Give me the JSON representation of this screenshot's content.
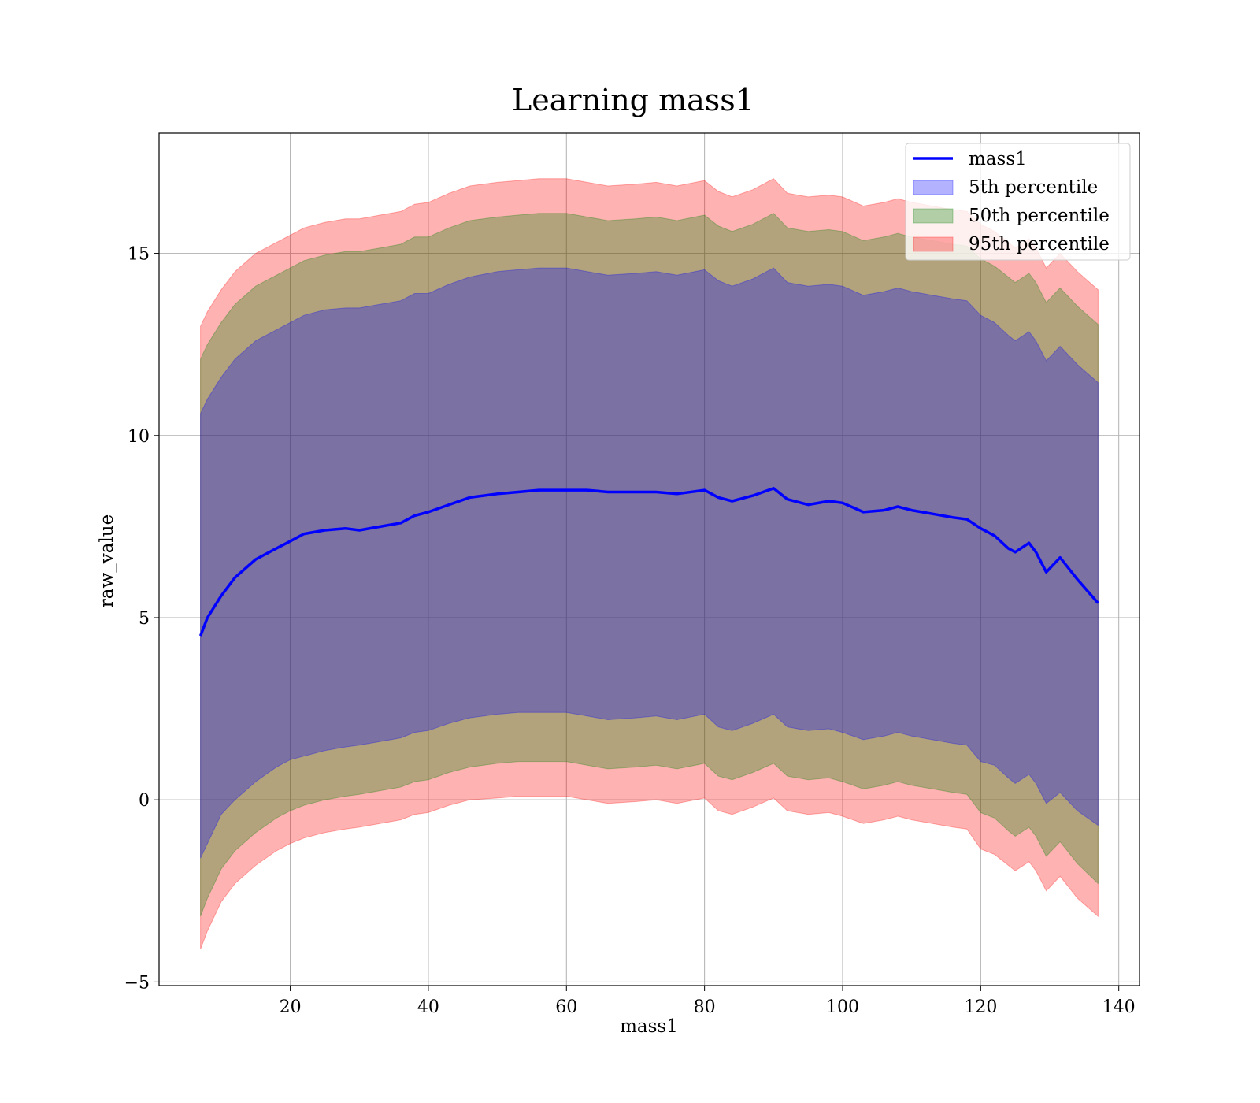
{
  "chart_data": {
    "type": "area",
    "title": "Learning mass1",
    "xlabel": "mass1",
    "ylabel": "raw_value",
    "xlim": [
      1,
      143
    ],
    "ylim": [
      -5.1,
      18.3
    ],
    "xticks": [
      20,
      40,
      60,
      80,
      100,
      120,
      140
    ],
    "yticks": [
      -5,
      0,
      5,
      10,
      15
    ],
    "grid": true,
    "legend_position": "top-right",
    "x": [
      7,
      8,
      10,
      12,
      15,
      18,
      20,
      22,
      25,
      28,
      30,
      33,
      36,
      38,
      40,
      43,
      46,
      50,
      53,
      56,
      60,
      63,
      66,
      70,
      73,
      76,
      80,
      82,
      84,
      87,
      90,
      92,
      95,
      98,
      100,
      103,
      106,
      108,
      110,
      113,
      116,
      118,
      120,
      122,
      124,
      125,
      127,
      128,
      129.5,
      131.5,
      134,
      137
    ],
    "series": [
      {
        "name": "mass1",
        "kind": "line",
        "color": "#0000ff",
        "values": [
          4.5,
          5.0,
          5.6,
          6.1,
          6.6,
          6.9,
          7.1,
          7.3,
          7.4,
          7.45,
          7.4,
          7.5,
          7.6,
          7.8,
          7.9,
          8.1,
          8.3,
          8.4,
          8.45,
          8.5,
          8.5,
          8.5,
          8.45,
          8.45,
          8.45,
          8.4,
          8.5,
          8.3,
          8.2,
          8.35,
          8.55,
          8.25,
          8.1,
          8.2,
          8.15,
          7.9,
          7.95,
          8.05,
          7.95,
          7.85,
          7.75,
          7.7,
          7.45,
          7.25,
          6.9,
          6.8,
          7.05,
          6.8,
          6.25,
          6.65,
          6.05,
          5.4
        ]
      },
      {
        "name": "5th percentile",
        "kind": "band",
        "color": "#0000ff",
        "lower": [
          -1.6,
          -1.2,
          -0.4,
          0.0,
          0.5,
          0.9,
          1.1,
          1.2,
          1.35,
          1.45,
          1.5,
          1.6,
          1.7,
          1.85,
          1.9,
          2.1,
          2.25,
          2.35,
          2.4,
          2.4,
          2.4,
          2.3,
          2.2,
          2.25,
          2.3,
          2.2,
          2.35,
          2.0,
          1.9,
          2.1,
          2.35,
          2.0,
          1.9,
          1.95,
          1.85,
          1.65,
          1.75,
          1.85,
          1.75,
          1.65,
          1.55,
          1.5,
          1.05,
          0.95,
          0.6,
          0.45,
          0.7,
          0.45,
          -0.1,
          0.2,
          -0.3,
          -0.7
        ],
        "upper": [
          10.6,
          11.0,
          11.6,
          12.1,
          12.6,
          12.9,
          13.1,
          13.3,
          13.45,
          13.5,
          13.5,
          13.6,
          13.7,
          13.9,
          13.9,
          14.15,
          14.35,
          14.5,
          14.55,
          14.6,
          14.6,
          14.5,
          14.4,
          14.45,
          14.5,
          14.4,
          14.55,
          14.25,
          14.1,
          14.3,
          14.6,
          14.2,
          14.1,
          14.15,
          14.1,
          13.85,
          13.95,
          14.05,
          13.95,
          13.85,
          13.75,
          13.7,
          13.3,
          13.1,
          12.75,
          12.6,
          12.85,
          12.6,
          12.05,
          12.45,
          11.95,
          11.45
        ]
      },
      {
        "name": "50th percentile",
        "kind": "band",
        "color": "#008000",
        "lower": [
          -3.2,
          -2.7,
          -1.9,
          -1.4,
          -0.9,
          -0.5,
          -0.3,
          -0.15,
          0.0,
          0.1,
          0.15,
          0.25,
          0.35,
          0.5,
          0.55,
          0.75,
          0.9,
          1.0,
          1.05,
          1.05,
          1.05,
          0.95,
          0.85,
          0.9,
          0.95,
          0.85,
          1.0,
          0.65,
          0.55,
          0.75,
          1.0,
          0.65,
          0.55,
          0.6,
          0.5,
          0.3,
          0.4,
          0.5,
          0.4,
          0.3,
          0.2,
          0.15,
          -0.35,
          -0.5,
          -0.85,
          -1.0,
          -0.75,
          -1.0,
          -1.55,
          -1.15,
          -1.75,
          -2.3
        ],
        "upper": [
          12.1,
          12.5,
          13.1,
          13.6,
          14.1,
          14.4,
          14.6,
          14.8,
          14.95,
          15.05,
          15.05,
          15.15,
          15.25,
          15.45,
          15.45,
          15.7,
          15.9,
          16.0,
          16.05,
          16.1,
          16.1,
          16.0,
          15.9,
          15.95,
          16.0,
          15.9,
          16.05,
          15.75,
          15.6,
          15.8,
          16.1,
          15.7,
          15.6,
          15.65,
          15.6,
          15.35,
          15.45,
          15.55,
          15.45,
          15.35,
          15.25,
          15.2,
          14.85,
          14.65,
          14.35,
          14.2,
          14.45,
          14.2,
          13.65,
          14.05,
          13.55,
          13.05
        ]
      },
      {
        "name": "95th percentile",
        "kind": "band",
        "color": "#ff0000",
        "lower": [
          -4.1,
          -3.6,
          -2.8,
          -2.3,
          -1.8,
          -1.4,
          -1.2,
          -1.05,
          -0.9,
          -0.8,
          -0.75,
          -0.65,
          -0.55,
          -0.4,
          -0.35,
          -0.15,
          0.0,
          0.05,
          0.1,
          0.1,
          0.1,
          0.0,
          -0.1,
          -0.05,
          0.0,
          -0.1,
          0.05,
          -0.3,
          -0.4,
          -0.2,
          0.05,
          -0.3,
          -0.4,
          -0.35,
          -0.45,
          -0.65,
          -0.55,
          -0.45,
          -0.55,
          -0.65,
          -0.75,
          -0.8,
          -1.35,
          -1.5,
          -1.8,
          -1.95,
          -1.7,
          -1.95,
          -2.5,
          -2.1,
          -2.7,
          -3.2
        ],
        "upper": [
          13.0,
          13.4,
          14.0,
          14.5,
          15.0,
          15.3,
          15.5,
          15.7,
          15.85,
          15.95,
          15.95,
          16.05,
          16.15,
          16.35,
          16.4,
          16.65,
          16.85,
          16.95,
          17.0,
          17.05,
          17.05,
          16.95,
          16.85,
          16.9,
          16.95,
          16.85,
          17.0,
          16.7,
          16.55,
          16.75,
          17.05,
          16.65,
          16.55,
          16.6,
          16.55,
          16.3,
          16.4,
          16.5,
          16.4,
          16.3,
          16.2,
          16.15,
          15.8,
          15.6,
          15.3,
          15.15,
          15.4,
          15.15,
          14.6,
          15.0,
          14.5,
          14.0
        ]
      }
    ]
  }
}
